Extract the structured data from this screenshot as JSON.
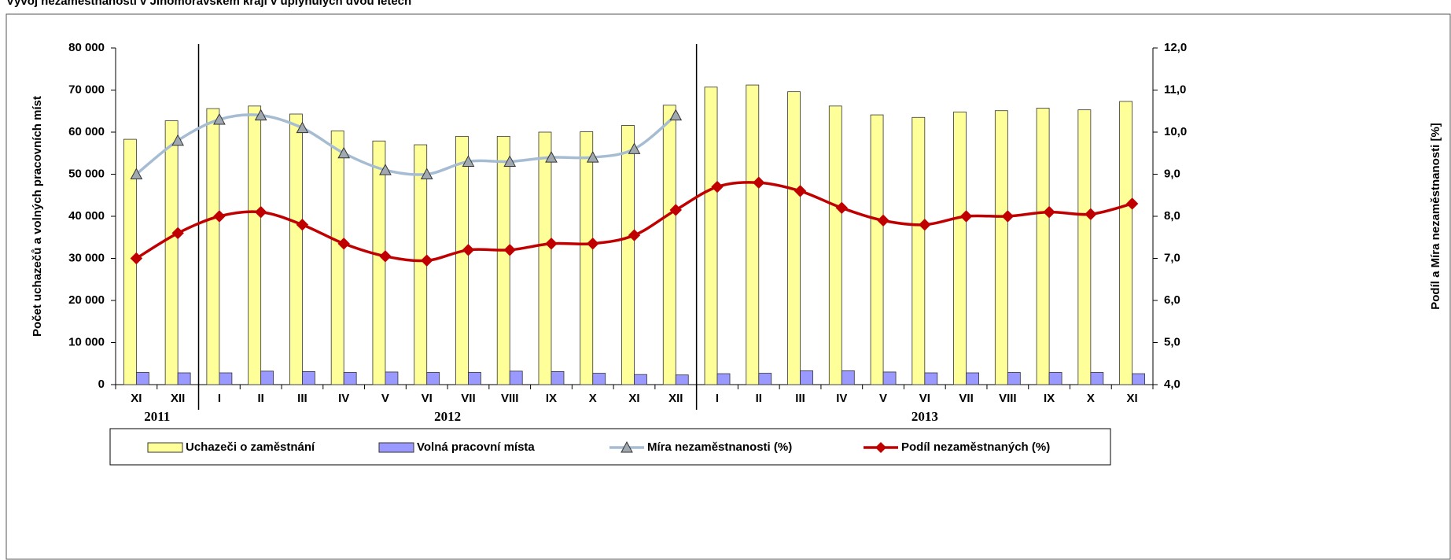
{
  "chart_data": {
    "type": "bar",
    "title": "Vývoj nezaměstnanosti v Jihomoravském kraji v uplynulých dvou letech",
    "ylabel": "Počet uchazečů a volných pracovních míst",
    "y2label": "Podíl a Míra  nezaměstnanosti [%]",
    "categories": [
      "XI",
      "XII",
      "I",
      "II",
      "III",
      "IV",
      "V",
      "VI",
      "VII",
      "VIII",
      "IX",
      "X",
      "XI",
      "XII",
      "I",
      "II",
      "III",
      "IV",
      "V",
      "VI",
      "VII",
      "VIII",
      "IX",
      "X",
      "XI"
    ],
    "years": [
      "2011",
      "2012",
      "2013"
    ],
    "series": [
      {
        "name": "Uchazeči o zaměstnání",
        "type": "bar",
        "color": "#ffff99",
        "values": [
          58300,
          62700,
          65600,
          66200,
          64300,
          60300,
          57900,
          57000,
          59000,
          59000,
          60000,
          60100,
          61600,
          66400,
          70700,
          71200,
          69600,
          66200,
          64100,
          63500,
          64800,
          65100,
          65700,
          65300,
          67300
        ]
      },
      {
        "name": "Volná pracovní místa",
        "type": "bar",
        "color": "#9999ff",
        "values": [
          2900,
          2800,
          2800,
          3200,
          3100,
          2900,
          3000,
          2900,
          2900,
          3200,
          3100,
          2700,
          2400,
          2300,
          2600,
          2700,
          3300,
          3300,
          3000,
          2800,
          2800,
          2900,
          2900,
          2900,
          2600
        ]
      },
      {
        "name": "Míra nezaměstnanosti  (%)",
        "type": "line",
        "axis": "y2",
        "marker": "triangle",
        "color": "#a6bcd3",
        "values": [
          9.0,
          9.8,
          10.3,
          10.4,
          10.1,
          9.5,
          9.1,
          9.0,
          9.3,
          9.3,
          9.4,
          9.4,
          9.6,
          10.4,
          null,
          null,
          null,
          null,
          null,
          null,
          null,
          null,
          null,
          null,
          null
        ]
      },
      {
        "name": "Podíl nezaměstnaných (%)",
        "type": "line",
        "axis": "y2",
        "marker": "diamond",
        "color": "#c00000",
        "values": [
          7.0,
          7.6,
          8.0,
          8.1,
          7.8,
          7.35,
          7.05,
          6.95,
          7.2,
          7.2,
          7.35,
          7.35,
          7.55,
          8.15,
          8.7,
          8.8,
          8.6,
          8.2,
          7.9,
          7.8,
          8.0,
          8.0,
          8.1,
          8.05,
          8.3
        ]
      }
    ],
    "ylim": [
      0,
      80000
    ],
    "yticks": [
      0,
      {
        "value": 10000,
        "label": "10 000"
      },
      {
        "value": 20000,
        "label": "20 000"
      },
      {
        "value": 30000,
        "label": "30 000"
      },
      {
        "value": 40000,
        "label": "40 000"
      },
      {
        "value": 50000,
        "label": "50 000"
      },
      {
        "value": 60000,
        "label": "60 000"
      },
      {
        "value": 70000,
        "label": "70 000"
      },
      {
        "value": 80000,
        "label": "80 000"
      }
    ],
    "y2lim": [
      4,
      12
    ],
    "y2ticks": [
      {
        "value": 4,
        "label": "4,0"
      },
      {
        "value": 5,
        "label": "5,0"
      },
      {
        "value": 6,
        "label": "6,0"
      },
      {
        "value": 7,
        "label": "7,0"
      },
      {
        "value": 8,
        "label": "8,0"
      },
      {
        "value": 9,
        "label": "9,0"
      },
      {
        "value": 10,
        "label": "10,0"
      },
      {
        "value": 11,
        "label": "11,0"
      },
      {
        "value": 12,
        "label": "12,0"
      }
    ],
    "legend": "bottom"
  }
}
